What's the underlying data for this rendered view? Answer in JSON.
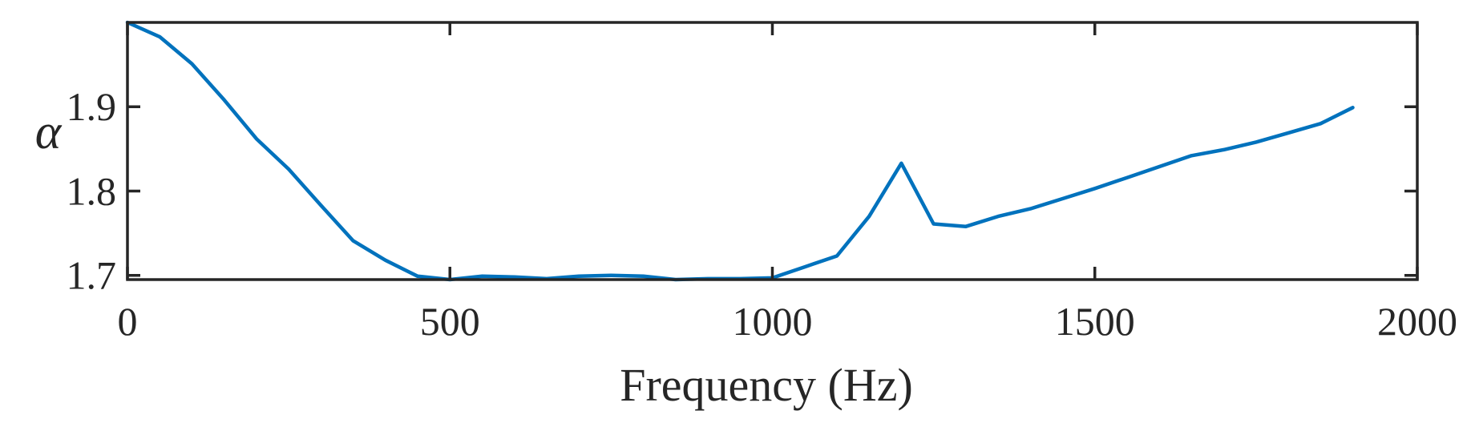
{
  "chart_data": {
    "type": "line",
    "title": "",
    "xlabel": "Frequency (Hz)",
    "ylabel": "α",
    "xlim": [
      0,
      2000
    ],
    "ylim": [
      1.695,
      2.0
    ],
    "xticks": [
      0,
      500,
      1000,
      1500,
      2000
    ],
    "xtick_labels": [
      "0",
      "500",
      "1000",
      "1500",
      "2000"
    ],
    "yticks": [
      1.7,
      1.8,
      1.9
    ],
    "ytick_labels": [
      "1.7",
      "1.8",
      "1.9"
    ],
    "grid": false,
    "line_color": "#0072BD",
    "series": [
      {
        "x": [
          0,
          50,
          100,
          150,
          200,
          250,
          300,
          350,
          400,
          450,
          500,
          550,
          600,
          650,
          700,
          750,
          800,
          850,
          900,
          950,
          1000,
          1050,
          1100,
          1150,
          1200,
          1250,
          1300,
          1350,
          1400,
          1450,
          1500,
          1550,
          1600,
          1650,
          1700,
          1750,
          1800,
          1850,
          1900
        ],
        "values": [
          2.0,
          1.983,
          1.951,
          1.908,
          1.862,
          1.826,
          1.783,
          1.741,
          1.718,
          1.699,
          1.695,
          1.699,
          1.698,
          1.696,
          1.699,
          1.7,
          1.699,
          1.695,
          1.696,
          1.696,
          1.697,
          1.71,
          1.723,
          1.77,
          1.833,
          1.761,
          1.758,
          1.77,
          1.779,
          1.791,
          1.803,
          1.816,
          1.829,
          1.842,
          1.849,
          1.858,
          1.869,
          1.88,
          1.899
        ]
      }
    ]
  }
}
